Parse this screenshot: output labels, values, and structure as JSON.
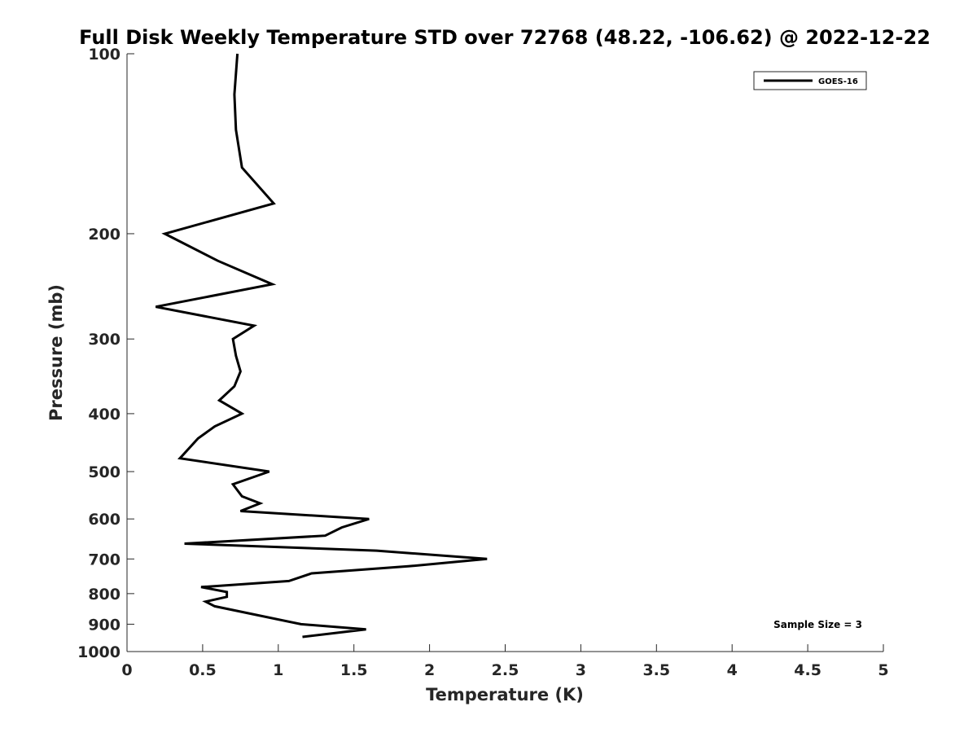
{
  "chart_data": {
    "type": "line",
    "title": "Full Disk Weekly Temperature STD over 72768 (48.22, -106.62) @ 2022-12-22",
    "xlabel": "Temperature (K)",
    "ylabel": "Pressure (mb)",
    "xlim": [
      0,
      5
    ],
    "ylim": [
      100,
      1000
    ],
    "y_scale": "log",
    "y_reversed": true,
    "x_ticks": [
      "0",
      "0.5",
      "1",
      "1.5",
      "2",
      "2.5",
      "3",
      "3.5",
      "4",
      "4.5",
      "5"
    ],
    "y_ticks": [
      "100",
      "200",
      "300",
      "400",
      "500",
      "600",
      "700",
      "800",
      "900",
      "1000"
    ],
    "grid": false,
    "legend_position": "top-right",
    "series": [
      {
        "name": "GOES-16",
        "color": "#000000",
        "points": [
          [
            0.73,
            100
          ],
          [
            0.71,
            117
          ],
          [
            0.72,
            134
          ],
          [
            0.76,
            155
          ],
          [
            0.97,
            178
          ],
          [
            0.25,
            200
          ],
          [
            0.6,
            222
          ],
          [
            0.96,
            243
          ],
          [
            0.19,
            265
          ],
          [
            0.84,
            285
          ],
          [
            0.7,
            300
          ],
          [
            0.72,
            320
          ],
          [
            0.75,
            340
          ],
          [
            0.71,
            360
          ],
          [
            0.61,
            380
          ],
          [
            0.76,
            400
          ],
          [
            0.58,
            420
          ],
          [
            0.47,
            440
          ],
          [
            0.35,
            475
          ],
          [
            0.94,
            500
          ],
          [
            0.7,
            525
          ],
          [
            0.76,
            550
          ],
          [
            0.88,
            565
          ],
          [
            0.75,
            582
          ],
          [
            1.6,
            600
          ],
          [
            1.42,
            620
          ],
          [
            1.31,
            640
          ],
          [
            0.38,
            660
          ],
          [
            1.65,
            678
          ],
          [
            2.38,
            700
          ],
          [
            1.86,
            720
          ],
          [
            1.22,
            740
          ],
          [
            1.07,
            762
          ],
          [
            0.49,
            780
          ],
          [
            0.66,
            795
          ],
          [
            0.66,
            810
          ],
          [
            0.52,
            825
          ],
          [
            0.58,
            840
          ],
          [
            1.15,
            900
          ],
          [
            1.58,
            918
          ],
          [
            1.16,
            945
          ]
        ]
      }
    ],
    "annotations": [
      "Sample Size = 3"
    ]
  }
}
